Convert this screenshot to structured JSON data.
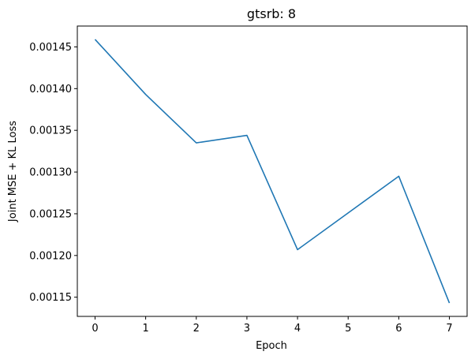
{
  "chart_data": {
    "type": "line",
    "title": "gtsrb: 8",
    "xlabel": "Epoch",
    "ylabel": "Joint MSE + KL Loss",
    "x": [
      0,
      1,
      2,
      3,
      4,
      5,
      6,
      7
    ],
    "series": [
      {
        "name": "loss",
        "color": "#1f77b4",
        "values": [
          0.001459,
          0.001393,
          0.001335,
          0.001344,
          0.001207,
          0.001251,
          0.001295,
          0.001143
        ]
      }
    ],
    "xticks": [
      0,
      1,
      2,
      3,
      4,
      5,
      6,
      7
    ],
    "xtick_labels": [
      "0",
      "1",
      "2",
      "3",
      "4",
      "5",
      "6",
      "7"
    ],
    "yticks": [
      0.00115,
      0.0012,
      0.00125,
      0.0013,
      0.00135,
      0.0014,
      0.00145
    ],
    "ytick_labels": [
      "0.00115",
      "0.00120",
      "0.00125",
      "0.00130",
      "0.00135",
      "0.00140",
      "0.00145"
    ],
    "xlim": [
      -0.35,
      7.35
    ],
    "ylim": [
      0.001127,
      0.001475
    ],
    "grid": false,
    "legend": "none"
  }
}
